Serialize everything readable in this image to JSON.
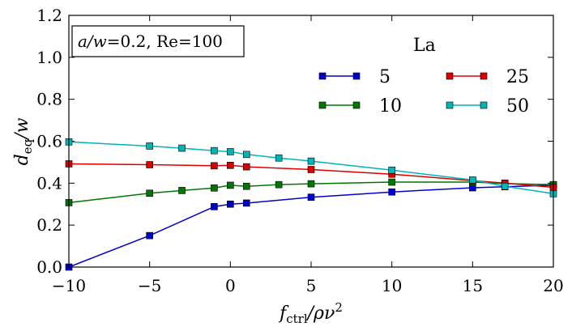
{
  "chart_data": {
    "type": "line",
    "x_tick_labels": [
      "−10",
      "−5",
      "0",
      "5",
      "10",
      "15",
      "20"
    ],
    "y_tick_labels": [
      "0.0",
      "0.2",
      "0.4",
      "0.6",
      "0.8",
      "1.0",
      "1.2"
    ],
    "x_ticks": [
      -10,
      -5,
      0,
      5,
      10,
      15,
      20
    ],
    "y_ticks": [
      0.0,
      0.2,
      0.4,
      0.6,
      0.8,
      1.0,
      1.2
    ],
    "xlim": [
      -10,
      20
    ],
    "ylim": [
      0.0,
      1.2
    ],
    "xlabel": {
      "main": "f",
      "sub": "ctrl",
      "rest": "/ρν",
      "sup": "2"
    },
    "ylabel": {
      "main": "d",
      "sub": "eq",
      "rest": "/w"
    },
    "annotation": {
      "italic": "a/w",
      "text": "=0.2, Re=100"
    },
    "legend": {
      "title": "La",
      "placement": "upper-right"
    },
    "grid": false,
    "series": [
      {
        "name": "5",
        "color": "#0000cc",
        "x": [
          -10,
          -5,
          -1,
          0,
          1,
          5,
          10,
          15,
          17,
          20
        ],
        "y": [
          0.0,
          0.15,
          0.288,
          0.3,
          0.305,
          0.333,
          0.358,
          0.378,
          0.383,
          0.39
        ]
      },
      {
        "name": "10",
        "color": "#007700",
        "x": [
          -10,
          -5,
          -3,
          -1,
          0,
          1,
          3,
          5,
          10,
          15,
          17,
          20
        ],
        "y": [
          0.307,
          0.352,
          0.365,
          0.377,
          0.39,
          0.385,
          0.393,
          0.397,
          0.405,
          0.405,
          0.398,
          0.393
        ]
      },
      {
        "name": "25",
        "color": "#dd0000",
        "x": [
          -10,
          -5,
          -1,
          0,
          1,
          5,
          10,
          15,
          17,
          20
        ],
        "y": [
          0.492,
          0.488,
          0.483,
          0.485,
          0.478,
          0.465,
          0.443,
          0.412,
          0.4,
          0.38
        ]
      },
      {
        "name": "50",
        "color": "#00b5b5",
        "x": [
          -10,
          -5,
          -3,
          -1,
          0,
          1,
          3,
          5,
          10,
          15,
          17,
          20
        ],
        "y": [
          0.597,
          0.577,
          0.567,
          0.555,
          0.55,
          0.537,
          0.52,
          0.505,
          0.462,
          0.415,
          0.385,
          0.35
        ]
      }
    ]
  }
}
